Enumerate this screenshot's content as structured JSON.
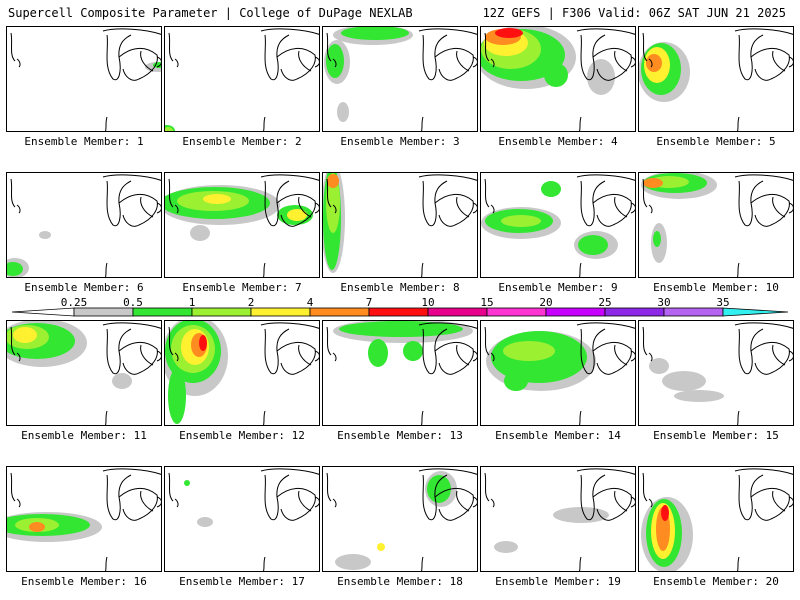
{
  "header": {
    "title": "Supercell Composite Parameter | College of DuPage NEXLAB",
    "run_info": "12Z GEFS | F306 Valid: 06Z SAT JUN 21 2025"
  },
  "colorbar": {
    "levels": [
      "0.25",
      "0.5",
      "1",
      "2",
      "4",
      "7",
      "10",
      "15",
      "20",
      "25",
      "30",
      "35"
    ],
    "colors": [
      "#c8c8c8",
      "#32e632",
      "#9bf032",
      "#fff030",
      "#ff8c20",
      "#ff1010",
      "#e6008c",
      "#ff32d2",
      "#c800ff",
      "#8c28e6",
      "#b464f0",
      "#32f0f0"
    ]
  },
  "panels": [
    {
      "label": "Ensemble Member: 1"
    },
    {
      "label": "Ensemble Member: 2"
    },
    {
      "label": "Ensemble Member: 3"
    },
    {
      "label": "Ensemble Member: 4"
    },
    {
      "label": "Ensemble Member: 5"
    },
    {
      "label": "Ensemble Member: 6"
    },
    {
      "label": "Ensemble Member: 7"
    },
    {
      "label": "Ensemble Member: 8"
    },
    {
      "label": "Ensemble Member: 9"
    },
    {
      "label": "Ensemble Member: 10"
    },
    {
      "label": "Ensemble Member: 11"
    },
    {
      "label": "Ensemble Member: 12"
    },
    {
      "label": "Ensemble Member: 13"
    },
    {
      "label": "Ensemble Member: 14"
    },
    {
      "label": "Ensemble Member: 15"
    },
    {
      "label": "Ensemble Member: 16"
    },
    {
      "label": "Ensemble Member: 17"
    },
    {
      "label": "Ensemble Member: 18"
    },
    {
      "label": "Ensemble Member: 19"
    },
    {
      "label": "Ensemble Member: 20"
    }
  ]
}
